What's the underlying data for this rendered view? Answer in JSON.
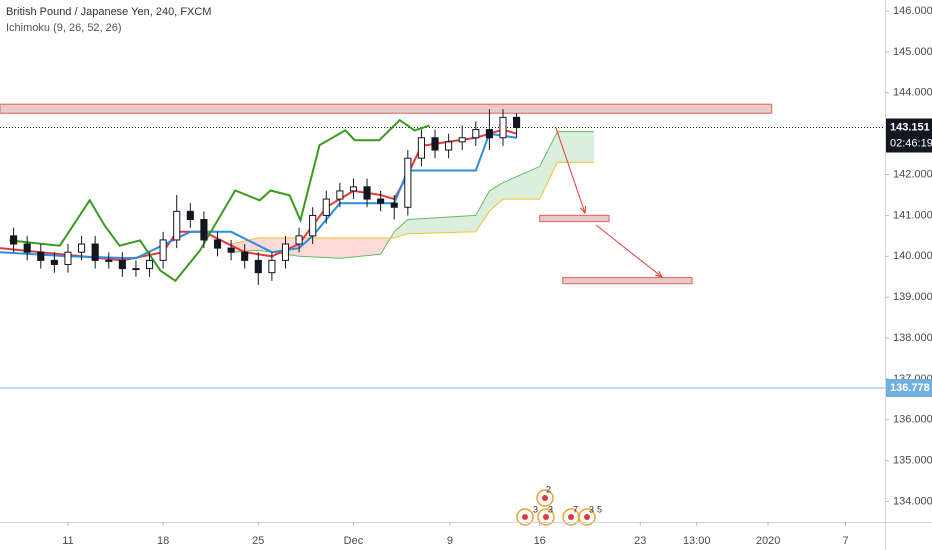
{
  "chart_data": {
    "type": "candlestick",
    "title": "British Pound / Japanese Yen, 240, FXCM",
    "indicator": "Ichimoku (9, 26, 52, 26)",
    "candle_color": "#131722",
    "x": [
      6,
      7,
      8,
      9,
      10,
      11,
      12,
      13,
      14,
      15,
      16,
      17,
      18,
      19,
      20,
      21,
      22,
      23,
      24,
      25,
      26,
      27,
      28,
      29,
      30,
      31,
      32,
      33,
      34,
      35,
      36,
      37,
      38,
      39,
      40,
      41,
      42,
      43
    ],
    "open": [
      140.5,
      140.3,
      140.1,
      139.9,
      139.8,
      140.1,
      140.3,
      139.9,
      139.9,
      139.7,
      139.7,
      139.9,
      140.4,
      141.1,
      140.9,
      140.4,
      140.2,
      140.1,
      139.9,
      139.6,
      139.9,
      140.3,
      140.5,
      141.0,
      141.4,
      141.6,
      141.7,
      141.4,
      141.3,
      141.2,
      142.4,
      142.9,
      142.6,
      142.8,
      142.9,
      143.1,
      142.9,
      143.4
    ],
    "high": [
      140.7,
      140.5,
      140.3,
      140.1,
      140.3,
      140.5,
      140.5,
      140.1,
      140.1,
      139.9,
      140.1,
      140.6,
      141.5,
      141.3,
      141.1,
      140.6,
      140.4,
      140.3,
      140.1,
      140.1,
      140.5,
      140.7,
      141.2,
      141.6,
      141.8,
      141.9,
      141.9,
      141.6,
      141.5,
      142.6,
      143.1,
      143.1,
      143.0,
      143.2,
      143.3,
      143.6,
      143.6,
      143.5
    ],
    "low": [
      140.1,
      139.9,
      139.7,
      139.6,
      139.6,
      139.9,
      139.7,
      139.7,
      139.5,
      139.5,
      139.5,
      139.7,
      140.2,
      140.7,
      140.2,
      140.0,
      139.9,
      139.7,
      139.3,
      139.4,
      139.7,
      140.1,
      140.3,
      140.8,
      141.2,
      141.4,
      141.2,
      141.1,
      140.9,
      141.0,
      142.2,
      142.4,
      142.4,
      142.6,
      142.7,
      142.6,
      142.7,
      142.9
    ],
    "close": [
      140.3,
      140.1,
      139.9,
      139.8,
      140.1,
      140.3,
      139.9,
      139.9,
      139.7,
      139.7,
      139.9,
      140.4,
      141.1,
      140.9,
      140.4,
      140.2,
      140.1,
      139.9,
      139.6,
      139.9,
      140.3,
      140.5,
      141.0,
      141.4,
      141.6,
      141.7,
      141.4,
      141.3,
      141.2,
      142.4,
      142.9,
      142.6,
      142.8,
      142.9,
      143.1,
      142.9,
      143.4,
      143.15
    ],
    "lines": [
      {
        "color": "#e53935",
        "x": [
          5,
          8,
          11,
          14,
          17,
          18,
          20,
          23,
          25,
          27,
          29,
          31,
          33,
          34,
          35,
          36,
          38,
          40,
          42,
          43
        ],
        "values": [
          140.2,
          140.1,
          140.0,
          139.9,
          140.1,
          140.6,
          140.6,
          140.1,
          140.0,
          140.3,
          141.2,
          141.6,
          141.5,
          141.4,
          142.0,
          142.7,
          142.8,
          142.9,
          143.1,
          143.0
        ]
      },
      {
        "color": "#2b8ee0",
        "x": [
          5,
          10,
          15,
          19,
          22,
          25,
          27,
          28,
          30,
          34,
          35,
          38,
          40,
          41,
          43
        ],
        "values": [
          140.1,
          140.0,
          139.95,
          140.6,
          140.6,
          140.1,
          140.2,
          140.5,
          141.3,
          141.3,
          142.1,
          142.1,
          142.1,
          143.0,
          142.9
        ]
      },
      {
        "color": "#3a9a1e",
        "x": [
          5.7,
          9.4,
          11.6,
          12.7,
          13.8,
          15.3,
          16.8,
          17.9,
          19.7,
          22.3,
          24.1,
          24.9,
          26.3,
          27.1,
          28.5,
          30.4,
          31.1,
          32.9,
          34.4,
          35.5,
          36.6
        ],
        "values": [
          140.39,
          140.26,
          141.37,
          140.75,
          140.26,
          140.39,
          139.65,
          139.4,
          140.14,
          141.61,
          141.37,
          141.61,
          141.49,
          140.88,
          142.72,
          143.08,
          142.84,
          142.84,
          143.33,
          143.08,
          143.2
        ]
      }
    ],
    "cloud": {
      "x": [
        22,
        24,
        27,
        30,
        33,
        34,
        35,
        40,
        41,
        42,
        44.7,
        46,
        48.7
      ],
      "span_a": [
        140.1,
        140.15,
        140.0,
        139.95,
        140.05,
        140.6,
        140.9,
        141.0,
        141.6,
        141.8,
        142.2,
        143.05,
        143.05
      ],
      "span_b": [
        140.3,
        140.45,
        140.45,
        140.45,
        140.45,
        140.45,
        140.55,
        140.6,
        141.1,
        141.4,
        141.4,
        142.3,
        142.3
      ],
      "span_a_color": "#66bb6a",
      "span_b_color": "#f2c230",
      "bull_color": "rgba(76,175,80,0.2)",
      "bear_color": "rgba(244,67,54,0.2)"
    },
    "zones": [
      {
        "x": [
          5,
          61.76
        ],
        "y": [
          143.5,
          143.72
        ],
        "color": "#e57373"
      },
      {
        "x": [
          44.7,
          49.8
        ],
        "y": [
          140.85,
          141.0
        ],
        "color": "#e57373"
      },
      {
        "x": [
          46.4,
          55.9
        ],
        "y": [
          139.33,
          139.48
        ],
        "color": "#e57373"
      }
    ],
    "price_lines": [
      {
        "value": 143.151,
        "countdown": "02:46:19",
        "color": "#131722",
        "label_color": "#131722",
        "dash": true
      },
      {
        "value": 136.778,
        "color": "#7fb6e8",
        "label_color": "#6fb0e0",
        "dash": false
      }
    ],
    "events": [
      "2",
      "3",
      "3",
      "7",
      "3",
      "5"
    ],
    "xlim": [
      5,
      70.1
    ],
    "ylim": [
      133.5,
      146.27
    ],
    "xticks": [
      {
        "value": 10,
        "label": "11"
      },
      {
        "value": 17,
        "label": "18"
      },
      {
        "value": 24,
        "label": "25"
      },
      {
        "value": 31,
        "label": "Dec"
      },
      {
        "value": 38.1,
        "label": "9"
      },
      {
        "value": 44.7,
        "label": "16"
      },
      {
        "value": 52.1,
        "label": "23"
      },
      {
        "value": 56.25,
        "label": "13:00"
      },
      {
        "value": 61.5,
        "label": "2020"
      },
      {
        "value": 67.2,
        "label": "7"
      }
    ],
    "yticks": [
      {
        "value": 134,
        "label": "134.000"
      },
      {
        "value": 135,
        "label": "135.000"
      },
      {
        "value": 136,
        "label": "136.000"
      },
      {
        "value": 137,
        "label": "137.000"
      },
      {
        "value": 138,
        "label": "138.000"
      },
      {
        "value": 139,
        "label": "139.000"
      },
      {
        "value": 140,
        "label": "140.000"
      },
      {
        "value": 141,
        "label": "141.000"
      },
      {
        "value": 142,
        "label": "142.000"
      },
      {
        "value": 143,
        "label": "143.000"
      },
      {
        "value": 144,
        "label": "144.000"
      },
      {
        "value": 145,
        "label": "145.000"
      },
      {
        "value": 146,
        "label": "146.000"
      }
    ]
  }
}
